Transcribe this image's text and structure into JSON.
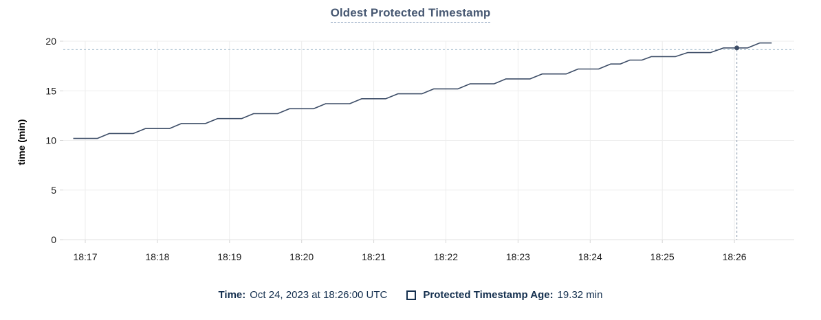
{
  "chart_data": {
    "type": "line",
    "title": "Oldest Protected Timestamp",
    "xlabel": "",
    "ylabel": "time (min)",
    "ylim": [
      0,
      20
    ],
    "y_ticks": [
      0,
      5,
      10,
      15,
      20
    ],
    "grid": true,
    "x_axis": {
      "tick_labels": [
        "18:17",
        "18:18",
        "18:19",
        "18:20",
        "18:21",
        "18:22",
        "18:23",
        "18:24",
        "18:25",
        "18:26"
      ],
      "tick_times_s": [
        10,
        70,
        130,
        190,
        250,
        310,
        370,
        430,
        490,
        550
      ],
      "time_origin_offset_note": "series t in seconds, t=10 corresponds to tick 18:17"
    },
    "series": [
      {
        "name": "Protected Timestamp Age",
        "unit": "min",
        "points": [
          [
            0,
            10.2
          ],
          [
            20,
            10.2
          ],
          [
            30,
            10.7
          ],
          [
            50,
            10.7
          ],
          [
            60,
            11.2
          ],
          [
            80,
            11.2
          ],
          [
            90,
            11.7
          ],
          [
            110,
            11.7
          ],
          [
            120,
            12.2
          ],
          [
            140,
            12.2
          ],
          [
            150,
            12.7
          ],
          [
            170,
            12.7
          ],
          [
            180,
            13.2
          ],
          [
            200,
            13.2
          ],
          [
            210,
            13.7
          ],
          [
            230,
            13.7
          ],
          [
            240,
            14.2
          ],
          [
            260,
            14.2
          ],
          [
            270,
            14.7
          ],
          [
            290,
            14.7
          ],
          [
            300,
            15.2
          ],
          [
            320,
            15.2
          ],
          [
            330,
            15.7
          ],
          [
            350,
            15.7
          ],
          [
            360,
            16.2
          ],
          [
            380,
            16.2
          ],
          [
            390,
            16.7
          ],
          [
            410,
            16.7
          ],
          [
            420,
            17.2
          ],
          [
            437,
            17.2
          ],
          [
            447,
            17.7
          ],
          [
            455,
            17.7
          ],
          [
            463,
            18.1
          ],
          [
            473,
            18.1
          ],
          [
            481,
            18.45
          ],
          [
            501,
            18.45
          ],
          [
            511,
            18.85
          ],
          [
            530,
            18.85
          ],
          [
            541,
            19.32
          ],
          [
            561,
            19.32
          ],
          [
            571,
            19.82
          ],
          [
            581,
            19.82
          ]
        ]
      }
    ],
    "threshold_line": {
      "value": 19.15,
      "style": "dashed"
    },
    "hover_marker": {
      "time_s": 552,
      "value": 19.32,
      "crosshair": true
    }
  },
  "legend": {
    "time_label": "Time:",
    "time_value": "Oct 24, 2023 at 18:26:00 UTC",
    "series_label": "Protected Timestamp Age:",
    "series_value": "19.32 min"
  },
  "colors": {
    "line": "#3d4d67",
    "marker": "#3d4d67",
    "threshold_dash": "#a4bccb",
    "crosshair_dash": "#9facba",
    "grid": "#ededed",
    "axis_line": "#e0e0e0",
    "tick_mark": "#d6d6d6",
    "tick_label": "#1c1c1c",
    "title_text": "#475872",
    "title_underline": "#9fb1c9",
    "legend_text": "#15304f",
    "background": "#ffffff"
  }
}
